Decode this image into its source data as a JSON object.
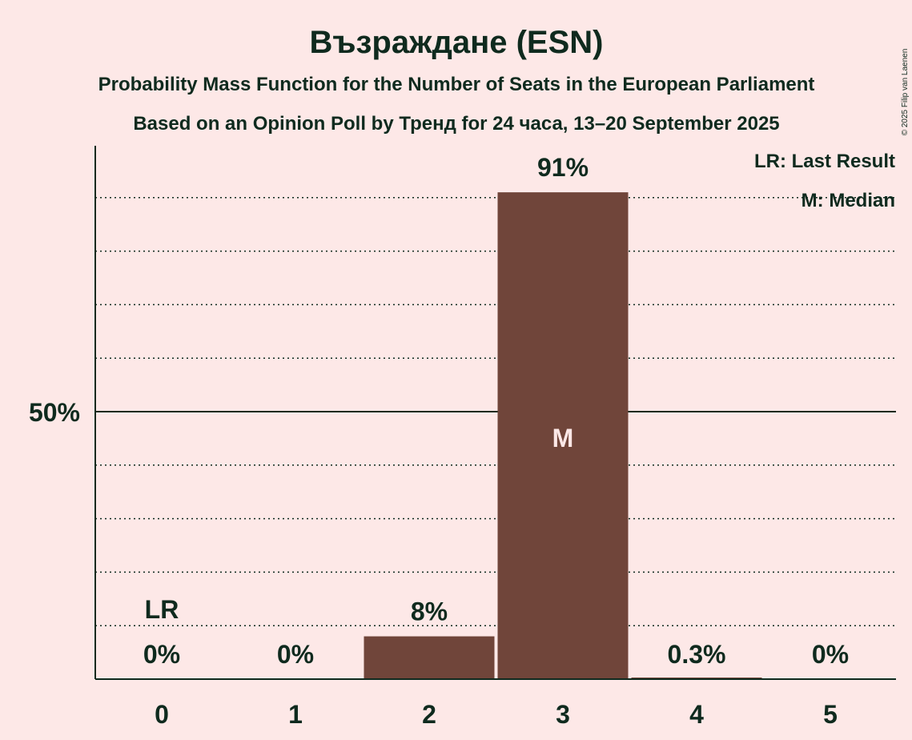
{
  "title": "Възраждане (ESN)",
  "subtitle1": "Probability Mass Function for the Number of Seats in the European Parliament",
  "subtitle2": "Based on an Opinion Poll by Тренд for 24 часа, 13–20 September 2025",
  "copyright": "© 2025 Filip van Laenen",
  "legend": {
    "last_result": "LR: Last Result",
    "median": "M: Median"
  },
  "colors": {
    "background": "#fde8e7",
    "bar": "#70453a",
    "text": "#0f2a1e",
    "median_mark": "#fde8e7"
  },
  "chart_data": {
    "type": "bar",
    "title": "Възраждане (ESN)",
    "categories": [
      "0",
      "1",
      "2",
      "3",
      "4",
      "5"
    ],
    "values": [
      0,
      0,
      8,
      91,
      0.3,
      0
    ],
    "value_labels": [
      "0%",
      "0%",
      "8%",
      "91%",
      "0.3%",
      "0%"
    ],
    "ylim": [
      0,
      100
    ],
    "y_ticks": [
      {
        "value": 50,
        "label": "50%"
      }
    ],
    "grid": "dotted every 10%",
    "last_result_seat": 0,
    "last_result_label": "LR",
    "median_seat": 3,
    "median_label": "M",
    "legend_position": "top-right"
  }
}
